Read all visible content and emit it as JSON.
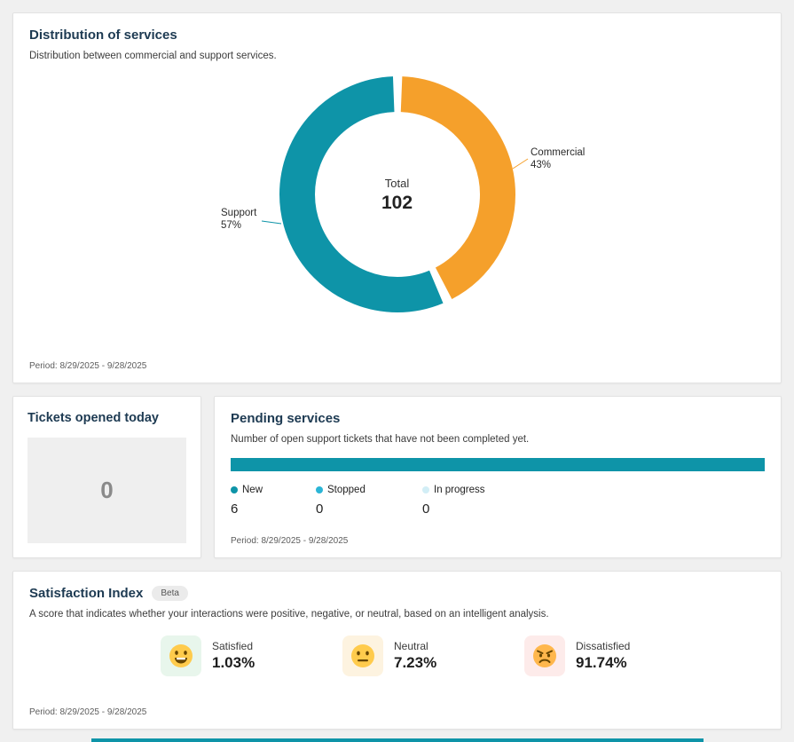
{
  "colors": {
    "teal": "#0e94a8",
    "orange": "#f5a02b",
    "cyan": "#2bb5d6",
    "lightcyan": "#d2eef6",
    "title": "#1d3a52"
  },
  "distribution": {
    "title": "Distribution of services",
    "subtitle": "Distribution between commercial and support services.",
    "center_label": "Total",
    "center_value": "102",
    "commercial_name": "Commercial",
    "commercial_pct": "43%",
    "support_name": "Support",
    "support_pct": "57%",
    "period": "Period: 8/29/2025 - 9/28/2025"
  },
  "tickets_today": {
    "title": "Tickets opened today",
    "value": "0"
  },
  "pending": {
    "title": "Pending services",
    "subtitle": "Number of open support tickets that have not been completed yet.",
    "items": [
      {
        "label": "New",
        "value": "6"
      },
      {
        "label": "Stopped",
        "value": "0"
      },
      {
        "label": "In progress",
        "value": "0"
      }
    ],
    "period": "Period: 8/29/2025 - 9/28/2025"
  },
  "satisfaction": {
    "title": "Satisfaction Index",
    "badge": "Beta",
    "subtitle": "A score that indicates whether your interactions were positive, negative, or neutral, based on an intelligent analysis.",
    "items": [
      {
        "label": "Satisfied",
        "value": "1.03%",
        "tile_bg": "#e8f6ec",
        "icon": "happy-face-icon"
      },
      {
        "label": "Neutral",
        "value": "7.23%",
        "tile_bg": "#fdf3e0",
        "icon": "neutral-face-icon"
      },
      {
        "label": "Dissatisfied",
        "value": "91.74%",
        "tile_bg": "#fdebea",
        "icon": "angry-face-icon"
      }
    ],
    "period": "Period: 8/29/2025 - 9/28/2025"
  },
  "chart_data": [
    {
      "type": "pie",
      "variant": "donut",
      "title": "Distribution of services",
      "labels": [
        "Commercial",
        "Support"
      ],
      "values": [
        43,
        57
      ],
      "colors": [
        "#f5a02b",
        "#0e94a8"
      ],
      "center_label": "Total",
      "center_value": 102,
      "legend_position": "outside-callouts",
      "period": "8/29/2025 - 9/28/2025"
    },
    {
      "type": "bar",
      "variant": "horizontal-stacked",
      "title": "Pending services",
      "categories": [
        "New",
        "Stopped",
        "In progress"
      ],
      "values": [
        6,
        0,
        0
      ],
      "colors": [
        "#0e94a8",
        "#2bb5d6",
        "#d2eef6"
      ],
      "period": "8/29/2025 - 9/28/2025"
    }
  ]
}
